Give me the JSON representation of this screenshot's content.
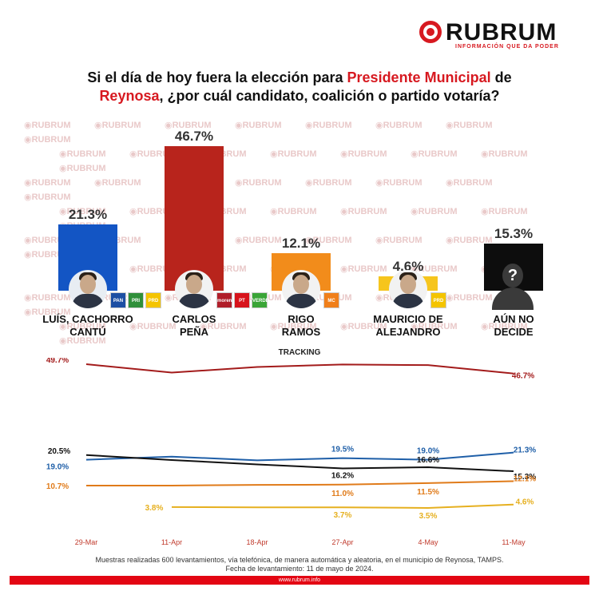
{
  "brand": {
    "name": "RUBRUM",
    "tagline": "INFORMACIÓN QUE DA PODER",
    "watermark": "RUBRUM",
    "website": "www.rubrum.info",
    "accent_color": "#d71920"
  },
  "title": {
    "part1": "Si el día de hoy fuera la elección para ",
    "highlight1": "Presidente Municipal",
    "part2": " de ",
    "highlight2": "Reynosa",
    "part3": ", ¿por cuál candidato, coalición o partido votaría?"
  },
  "chart_data": [
    {
      "type": "bar",
      "categories": [
        "LUÍS, CACHORRO CANTÚ",
        "CARLOS PEÑA",
        "RIGO RAMOS",
        "MAURICIO DE ALEJANDRO",
        "AÚN NO DECIDE"
      ],
      "name_lines": [
        [
          "LUÍS, CACHORRO",
          "CANTÚ"
        ],
        [
          "CARLOS",
          "PEÑA"
        ],
        [
          "RIGO",
          "RAMOS"
        ],
        [
          "MAURICIO DE",
          "ALEJANDRO"
        ],
        [
          "AÚN NO",
          "DECIDE"
        ]
      ],
      "values": [
        21.3,
        46.7,
        12.1,
        4.6,
        15.3
      ],
      "value_labels": [
        "21.3%",
        "46.7%",
        "12.1%",
        "4.6%",
        "15.3%"
      ],
      "colors": [
        "#1355c4",
        "#b8241c",
        "#f28c1b",
        "#f6c51d",
        "#0d0d0d"
      ],
      "party_logos": [
        [
          "PAN",
          "PRI",
          "PRD"
        ],
        [
          "morena",
          "PT",
          "VERDE"
        ],
        [
          "MC"
        ],
        [
          "PRD"
        ],
        []
      ],
      "ylim": [
        0,
        50
      ]
    },
    {
      "type": "line",
      "title": "TRACKING",
      "x": [
        "29-Mar",
        "11-Apr",
        "18-Apr",
        "27-Apr",
        "4-May",
        "11-May"
      ],
      "ylim": [
        0,
        55
      ],
      "series": [
        {
          "color": "#a31b1b",
          "values": [
            49.7,
            47.0,
            48.8,
            49.6,
            49.4,
            46.7
          ],
          "labels": [
            "49.7%",
            "",
            "",
            "49.6%",
            "49.4%",
            "46.7%"
          ]
        },
        {
          "color": "#1f5fa8",
          "values": [
            19.0,
            20.0,
            18.8,
            19.5,
            19.0,
            21.3
          ],
          "labels": [
            "19.0%",
            "",
            "",
            "19.5%",
            "19.0%",
            "21.3%"
          ]
        },
        {
          "color": "#111111",
          "values": [
            20.5,
            18.9,
            17.5,
            16.2,
            16.6,
            15.3
          ],
          "labels": [
            "20.5%",
            "",
            "",
            "16.2%",
            "16.6%",
            "15.3%"
          ]
        },
        {
          "color": "#e07b1a",
          "values": [
            10.7,
            10.7,
            10.9,
            11.0,
            11.5,
            12.1
          ],
          "labels": [
            "10.7%",
            "",
            "",
            "11.0%",
            "11.5%",
            "12.1%"
          ]
        },
        {
          "color": "#e6b020",
          "values": [
            null,
            3.8,
            3.7,
            3.7,
            3.5,
            4.6
          ],
          "labels": [
            "",
            "3.8%",
            "",
            "3.7%",
            "3.5%",
            "4.6%"
          ]
        }
      ]
    }
  ],
  "footnote": {
    "line1": "Muestras realizadas 600 levantamientos, vía telefónica, de manera automática y aleatoria, en el municipio de Reynosa, TAMPS.",
    "line2": "Fecha de levantamiento: 11 de mayo de 2024."
  }
}
